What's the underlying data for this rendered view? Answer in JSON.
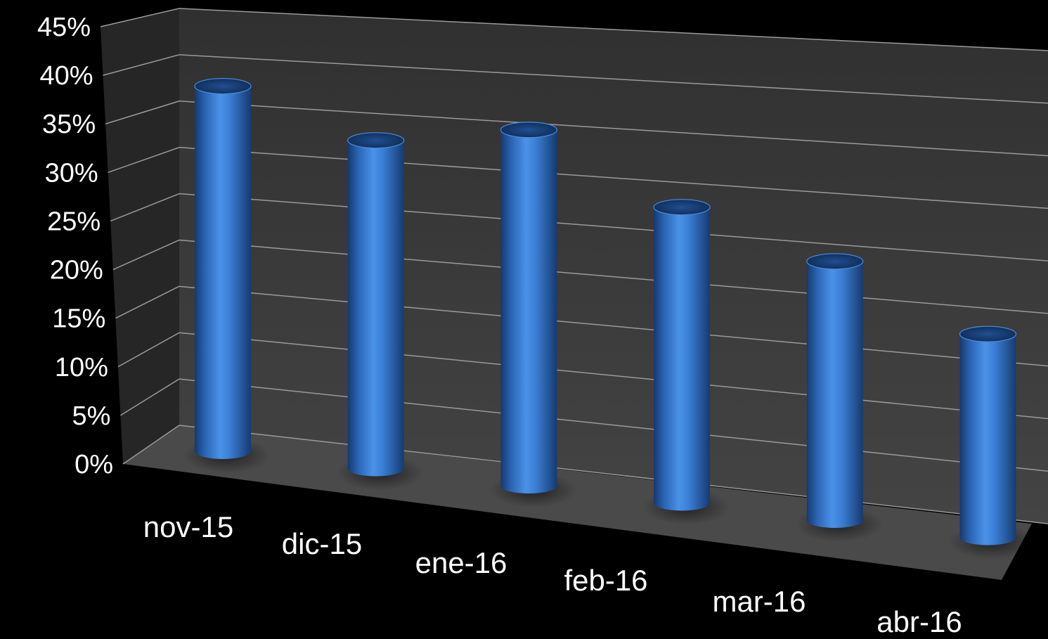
{
  "chart_data": {
    "type": "bar",
    "style": "3d-cylinder",
    "categories": [
      "nov-15",
      "dic-15",
      "ene-16",
      "feb-16",
      "mar-16",
      "abr-16"
    ],
    "series": [
      {
        "values": [
          39.5,
          35.5,
          38.5,
          32,
          28,
          22
        ],
        "color": "#3a7fd5"
      }
    ],
    "y_ticks": [
      "0%",
      "5%",
      "10%",
      "15%",
      "20%",
      "25%",
      "30%",
      "35%",
      "40%",
      "45%"
    ],
    "ylim": [
      0,
      45
    ],
    "y_unit": "%",
    "grid": true,
    "legend": "none",
    "title": "",
    "xlabel": "",
    "ylabel": "",
    "colors": {
      "background": "#000000",
      "wall": "#3a3a3a",
      "floor": "#4a4a4a",
      "gridline": "#9a9a9a",
      "bar": "#3a7fd5",
      "text": "#ffffff"
    }
  }
}
